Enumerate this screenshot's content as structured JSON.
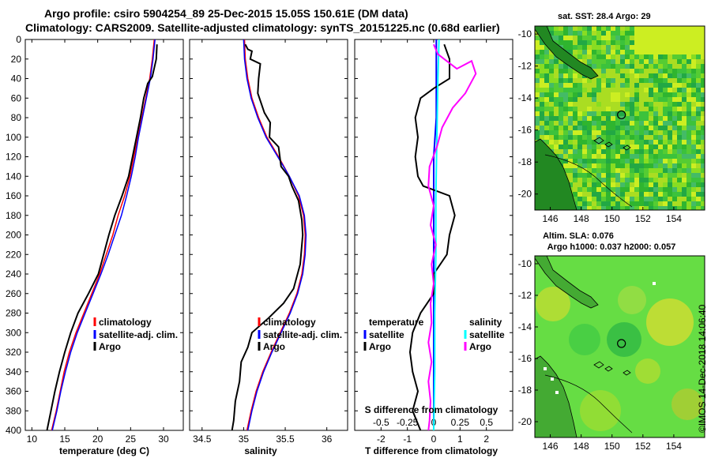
{
  "header": {
    "title_line1": "Argo profile: csiro 5904254_89 25-Dec-2015 15.05S 150.61E (DM data)",
    "title_line2": "Climatology: CARS2009. Satellite-adjusted climatology: synTS_20151225.nc (0.68d earlier)"
  },
  "colors": {
    "climatology": "#ff0000",
    "satellite": "#0000ff",
    "argo": "#000000",
    "satellite_s": "#00ffff",
    "argo_s": "#ff00ff",
    "sst_bg": "#33bb33",
    "sla_bg": "#66dd44"
  },
  "chart_data": [
    {
      "type": "line",
      "id": "temperature",
      "xlabel": "temperature (deg C)",
      "ylabel": "depth",
      "xlim": [
        9,
        33
      ],
      "ylim": [
        400,
        0
      ],
      "xticks": [
        10,
        15,
        20,
        25,
        30
      ],
      "yticks": [
        0,
        20,
        40,
        60,
        80,
        100,
        120,
        140,
        160,
        180,
        200,
        220,
        240,
        260,
        280,
        300,
        320,
        340,
        360,
        380,
        400
      ],
      "legend": {
        "position": "lower-right",
        "items": [
          "climatology",
          "satellite-adj. clim.",
          "Argo"
        ]
      },
      "series": [
        {
          "name": "climatology",
          "color": "#ff0000",
          "points": [
            [
              28.6,
              0
            ],
            [
              28.3,
              20
            ],
            [
              27.9,
              40
            ],
            [
              27.3,
              60
            ],
            [
              26.7,
              80
            ],
            [
              26.1,
              100
            ],
            [
              25.5,
              120
            ],
            [
              24.9,
              140
            ],
            [
              24.1,
              160
            ],
            [
              23.1,
              180
            ],
            [
              22.3,
              200
            ],
            [
              21.3,
              220
            ],
            [
              20.3,
              240
            ],
            [
              19.1,
              260
            ],
            [
              17.9,
              280
            ],
            [
              16.7,
              300
            ],
            [
              15.7,
              320
            ],
            [
              14.9,
              340
            ],
            [
              14.3,
              360
            ],
            [
              13.7,
              380
            ],
            [
              13.0,
              400
            ]
          ]
        },
        {
          "name": "satellite-adj. clim.",
          "color": "#0000ff",
          "points": [
            [
              28.7,
              0
            ],
            [
              28.4,
              20
            ],
            [
              28.0,
              40
            ],
            [
              27.4,
              60
            ],
            [
              26.8,
              80
            ],
            [
              26.2,
              100
            ],
            [
              25.7,
              120
            ],
            [
              25.1,
              140
            ],
            [
              24.4,
              160
            ],
            [
              23.6,
              180
            ],
            [
              22.6,
              200
            ],
            [
              21.6,
              220
            ],
            [
              20.5,
              240
            ],
            [
              19.3,
              260
            ],
            [
              18.1,
              280
            ],
            [
              16.9,
              300
            ],
            [
              15.9,
              320
            ],
            [
              15.1,
              340
            ],
            [
              14.4,
              360
            ],
            [
              13.8,
              380
            ],
            [
              13.1,
              400
            ]
          ]
        },
        {
          "name": "Argo",
          "color": "#000000",
          "points": [
            [
              29.0,
              5
            ],
            [
              28.9,
              20
            ],
            [
              28.3,
              38
            ],
            [
              27.6,
              45
            ],
            [
              27.0,
              60
            ],
            [
              26.5,
              80
            ],
            [
              25.9,
              100
            ],
            [
              25.3,
              120
            ],
            [
              24.7,
              140
            ],
            [
              23.7,
              160
            ],
            [
              22.6,
              180
            ],
            [
              21.7,
              200
            ],
            [
              20.9,
              220
            ],
            [
              20.1,
              240
            ],
            [
              18.6,
              260
            ],
            [
              17.0,
              280
            ],
            [
              15.9,
              300
            ],
            [
              15.0,
              320
            ],
            [
              14.2,
              340
            ],
            [
              13.5,
              360
            ],
            [
              12.9,
              380
            ],
            [
              12.3,
              400
            ]
          ]
        }
      ]
    },
    {
      "type": "line",
      "id": "salinity",
      "xlabel": "salinity",
      "ylabel": "depth",
      "xlim": [
        34.35,
        36.25
      ],
      "ylim": [
        400,
        0
      ],
      "xticks": [
        34.5,
        35,
        35.5,
        36
      ],
      "xtick_labels": [
        "34.5",
        "35",
        "35.5",
        "36"
      ],
      "legend": {
        "position": "lower-right",
        "items": [
          "climatology",
          "satellite-adj. clim.",
          "Argo"
        ]
      },
      "series": [
        {
          "name": "climatology",
          "color": "#ff0000",
          "points": [
            [
              35.01,
              0
            ],
            [
              35.02,
              20
            ],
            [
              35.05,
              40
            ],
            [
              35.1,
              60
            ],
            [
              35.18,
              80
            ],
            [
              35.28,
              100
            ],
            [
              35.42,
              120
            ],
            [
              35.55,
              140
            ],
            [
              35.66,
              160
            ],
            [
              35.72,
              180
            ],
            [
              35.74,
              200
            ],
            [
              35.73,
              220
            ],
            [
              35.7,
              240
            ],
            [
              35.64,
              260
            ],
            [
              35.55,
              280
            ],
            [
              35.44,
              300
            ],
            [
              35.33,
              320
            ],
            [
              35.23,
              340
            ],
            [
              35.15,
              360
            ],
            [
              35.09,
              380
            ],
            [
              35.04,
              400
            ]
          ]
        },
        {
          "name": "satellite-adj. clim.",
          "color": "#0000ff",
          "points": [
            [
              35.0,
              0
            ],
            [
              35.01,
              20
            ],
            [
              35.04,
              40
            ],
            [
              35.09,
              60
            ],
            [
              35.17,
              80
            ],
            [
              35.27,
              100
            ],
            [
              35.41,
              120
            ],
            [
              35.55,
              140
            ],
            [
              35.67,
              160
            ],
            [
              35.73,
              180
            ],
            [
              35.75,
              200
            ],
            [
              35.74,
              220
            ],
            [
              35.71,
              240
            ],
            [
              35.65,
              260
            ],
            [
              35.56,
              280
            ],
            [
              35.45,
              300
            ],
            [
              35.34,
              320
            ],
            [
              35.24,
              340
            ],
            [
              35.16,
              360
            ],
            [
              35.1,
              380
            ],
            [
              35.05,
              400
            ]
          ]
        },
        {
          "name": "Argo",
          "color": "#000000",
          "points": [
            [
              35.02,
              5
            ],
            [
              35.05,
              10
            ],
            [
              35.1,
              12
            ],
            [
              35.08,
              20
            ],
            [
              35.2,
              25
            ],
            [
              35.18,
              40
            ],
            [
              35.17,
              55
            ],
            [
              35.25,
              75
            ],
            [
              35.32,
              85
            ],
            [
              35.31,
              100
            ],
            [
              35.42,
              110
            ],
            [
              35.45,
              130
            ],
            [
              35.54,
              140
            ],
            [
              35.58,
              150
            ],
            [
              35.66,
              165
            ],
            [
              35.7,
              185
            ],
            [
              35.71,
              200
            ],
            [
              35.68,
              230
            ],
            [
              35.6,
              255
            ],
            [
              35.48,
              270
            ],
            [
              35.3,
              285
            ],
            [
              35.1,
              300
            ],
            [
              35.05,
              315
            ],
            [
              34.97,
              330
            ],
            [
              34.95,
              350
            ],
            [
              34.9,
              370
            ],
            [
              34.88,
              390
            ],
            [
              34.86,
              400
            ]
          ]
        }
      ]
    },
    {
      "type": "line",
      "id": "difference",
      "xlabel": "T difference from climatology",
      "secondary_xlabel": "S difference from climatology",
      "xlim": [
        -3,
        3
      ],
      "ylim": [
        400,
        0
      ],
      "xticks": [
        -2,
        -1,
        0,
        1,
        2
      ],
      "xtick_labels": [
        "-2",
        "-1",
        "0",
        "1",
        "2"
      ],
      "s_xticks": [
        -0.5,
        -0.25,
        0,
        0.25,
        0.5
      ],
      "s_xtick_labels": [
        "-0.5",
        "-0.25",
        "0",
        "0.25",
        "0.5"
      ],
      "legend": {
        "position": "lower-center",
        "temperature_title": "temperature",
        "salinity_title": "salinity",
        "temperature_items": [
          "satellite",
          "Argo"
        ],
        "salinity_items": [
          "satellite",
          "Argo"
        ]
      },
      "series": [
        {
          "name": "T satellite",
          "color": "#0000ff",
          "points": [
            [
              0.1,
              0
            ],
            [
              0.1,
              20
            ],
            [
              0.1,
              40
            ],
            [
              0.1,
              80
            ],
            [
              0.0,
              120
            ],
            [
              0.0,
              160
            ],
            [
              0.0,
              200
            ],
            [
              0.0,
              240
            ],
            [
              0.0,
              280
            ],
            [
              0.0,
              320
            ],
            [
              0.0,
              360
            ],
            [
              0.0,
              400
            ]
          ]
        },
        {
          "name": "T Argo",
          "color": "#000000",
          "points": [
            [
              0.4,
              5
            ],
            [
              0.6,
              20
            ],
            [
              0.6,
              40
            ],
            [
              0.0,
              50
            ],
            [
              -0.5,
              60
            ],
            [
              -0.7,
              80
            ],
            [
              -0.6,
              100
            ],
            [
              -0.7,
              120
            ],
            [
              -0.6,
              140
            ],
            [
              -0.4,
              150
            ],
            [
              0.6,
              160
            ],
            [
              0.8,
              180
            ],
            [
              0.6,
              200
            ],
            [
              0.5,
              220
            ],
            [
              0.0,
              240
            ],
            [
              0.0,
              260
            ],
            [
              -0.5,
              280
            ],
            [
              -0.8,
              300
            ],
            [
              -0.9,
              320
            ],
            [
              -0.8,
              340
            ],
            [
              -0.6,
              360
            ],
            [
              -0.8,
              380
            ],
            [
              -0.5,
              400
            ]
          ]
        },
        {
          "name": "S satellite",
          "color": "#00ffff",
          "points": [
            [
              0.05,
              0
            ],
            [
              0.04,
              40
            ],
            [
              0.03,
              100
            ],
            [
              0.02,
              160
            ],
            [
              0.02,
              220
            ],
            [
              0.01,
              280
            ],
            [
              0.01,
              340
            ],
            [
              0.0,
              400
            ]
          ]
        },
        {
          "name": "S Argo",
          "color": "#ff00ff",
          "points": [
            [
              0.0,
              5
            ],
            [
              0.04,
              15
            ],
            [
              0.1,
              20
            ],
            [
              0.22,
              30
            ],
            [
              0.36,
              22
            ],
            [
              0.4,
              35
            ],
            [
              0.3,
              55
            ],
            [
              0.18,
              70
            ],
            [
              0.08,
              90
            ],
            [
              0.03,
              110
            ],
            [
              -0.04,
              130
            ],
            [
              -0.05,
              150
            ],
            [
              0.0,
              170
            ],
            [
              -0.03,
              190
            ],
            [
              0.02,
              210
            ],
            [
              -0.02,
              230
            ],
            [
              0.0,
              250
            ],
            [
              -0.03,
              270
            ],
            [
              -0.02,
              290
            ],
            [
              -0.05,
              310
            ],
            [
              -0.02,
              330
            ],
            [
              -0.05,
              350
            ],
            [
              -0.03,
              370
            ],
            [
              -0.04,
              390
            ],
            [
              -0.05,
              400
            ]
          ]
        }
      ]
    },
    {
      "type": "heatmap",
      "id": "sst_map",
      "title": "sat. SST: 28.4  Argo: 29",
      "xlim": [
        145,
        156
      ],
      "ylim": [
        -21,
        -9.5
      ],
      "xticks": [
        146,
        148,
        150,
        152,
        154
      ],
      "yticks": [
        -10,
        -12,
        -14,
        -16,
        -18,
        -20
      ],
      "argo_position": [
        150.61,
        -15.05
      ]
    },
    {
      "type": "heatmap",
      "id": "sla_map",
      "title_line1": "Altim. SLA: 0.076",
      "title_line2": "Argo h1000: 0.037 h2000: 0.057",
      "xlim": [
        145,
        156
      ],
      "ylim": [
        -21,
        -9.5
      ],
      "xticks": [
        146,
        148,
        150,
        152,
        154
      ],
      "yticks": [
        -10,
        -12,
        -14,
        -16,
        -18,
        -20
      ],
      "argo_position": [
        150.61,
        -15.05
      ]
    }
  ],
  "footer": {
    "credit": "©IMOS 14-Dec-2018 14:06:40"
  }
}
